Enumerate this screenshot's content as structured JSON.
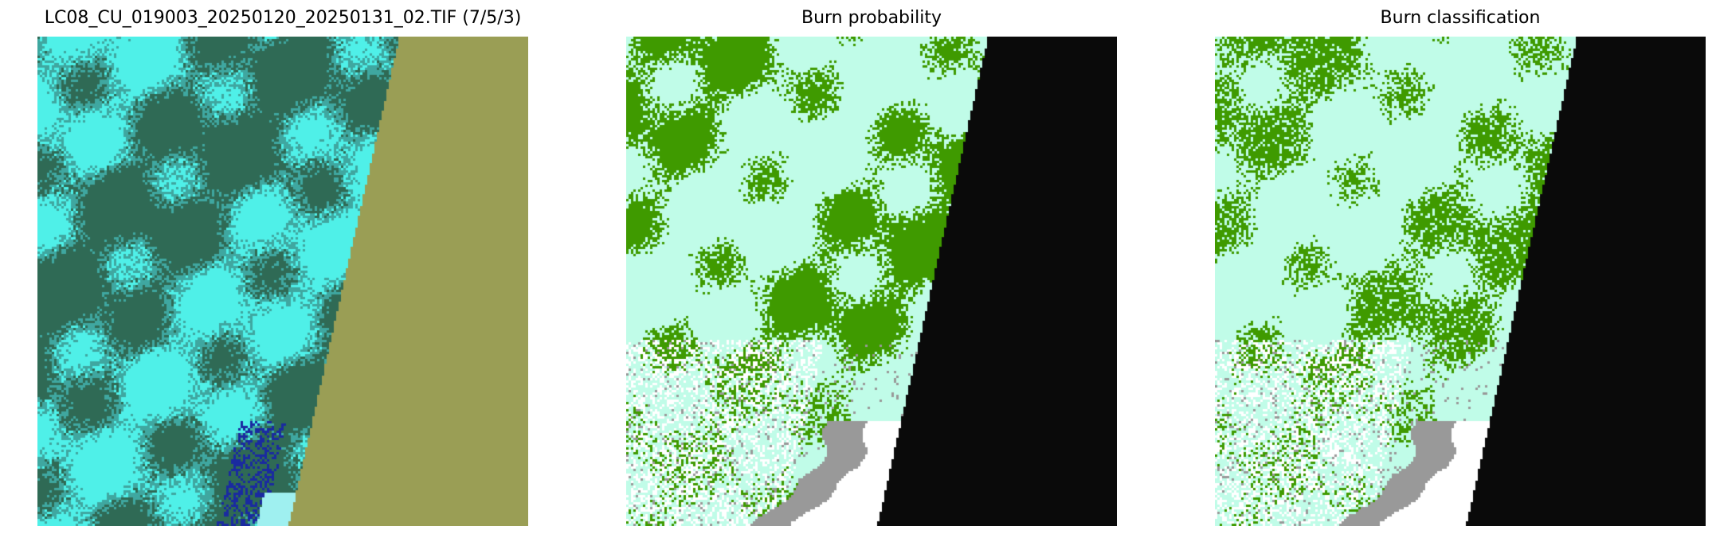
{
  "figure": {
    "panels": [
      {
        "title": "LC08_CU_019003_20250120_20250131_02.TIF (7/5/3)",
        "kind": "false-color-composite",
        "colors": {
          "land": "#2f6a55",
          "snow": "#4ff0e8",
          "nodata": "#9a9e55",
          "water": "#1a2aa0"
        }
      },
      {
        "title": "Burn probability",
        "kind": "probability-map",
        "colors": {
          "background": "#c0fce8",
          "burn": "#3f9a00",
          "cloud": "#ffffff",
          "water": "#999999",
          "nodata": "#0a0a0a"
        }
      },
      {
        "title": "Burn classification",
        "kind": "classification-map",
        "colors": {
          "background": "#c0fce8",
          "burn": "#3f9a00",
          "cloud": "#ffffff",
          "water": "#999999",
          "nodata": "#0a0a0a"
        }
      }
    ]
  }
}
